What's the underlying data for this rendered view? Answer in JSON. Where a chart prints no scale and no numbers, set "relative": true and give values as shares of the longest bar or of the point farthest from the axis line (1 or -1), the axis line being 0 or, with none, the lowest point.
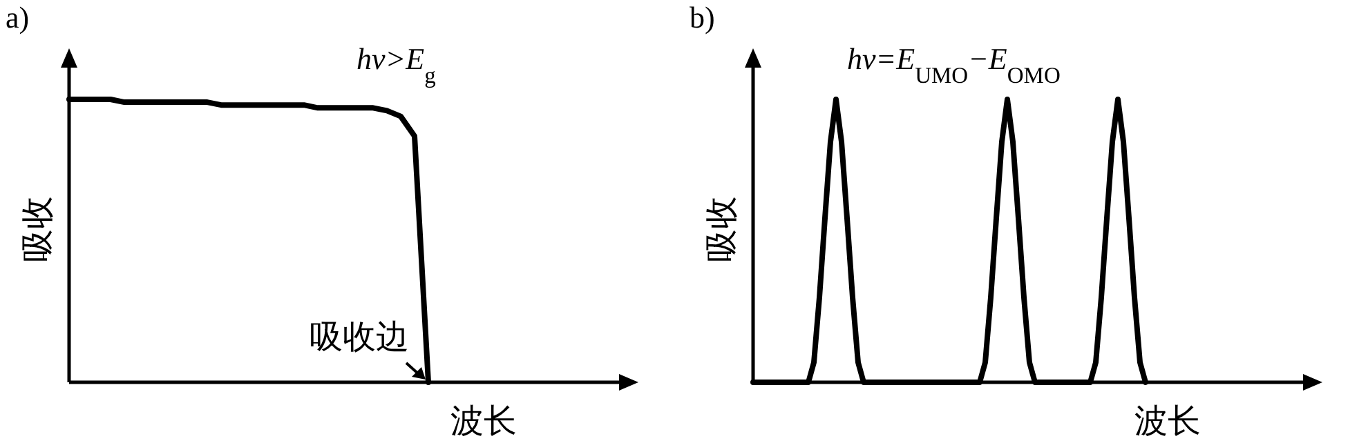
{
  "chart_data": [
    {
      "type": "line",
      "title": "a)",
      "xlabel": "波长",
      "ylabel": "吸收",
      "relative": true,
      "categories": [
        null,
        null,
        null,
        null,
        null,
        null,
        null,
        null,
        null,
        null,
        null,
        null,
        null,
        null,
        null,
        null,
        null,
        null,
        null,
        null,
        null,
        null,
        null,
        null,
        null,
        null,
        null,
        null,
        null,
        null,
        null,
        null,
        null,
        null,
        null,
        null,
        null,
        null,
        null,
        null,
        null
      ],
      "series": [
        {
          "color": "#000000",
          "values": [
            1,
            1,
            1,
            1,
            0.99,
            0.99,
            0.99,
            0.99,
            0.99,
            0.99,
            0.99,
            0.98,
            0.98,
            0.98,
            0.98,
            0.98,
            0.98,
            0.98,
            0.97,
            0.97,
            0.97,
            0.97,
            0.97,
            0.96,
            0.94,
            0.87,
            0,
            null,
            null,
            null,
            null,
            null,
            null,
            null,
            null,
            null,
            null,
            null,
            null,
            null,
            null
          ]
        }
      ],
      "annotations": [
        "hv>E$_{g}$",
        "吸收边"
      ]
    },
    {
      "type": "line",
      "title": "b)",
      "xlabel": "波长",
      "ylabel": "吸收",
      "relative": true,
      "categories": [
        null,
        null,
        null,
        null,
        null,
        null,
        null,
        null,
        null,
        null,
        null,
        null,
        null,
        null,
        null,
        null,
        null,
        null,
        null,
        null,
        null,
        null,
        null,
        null,
        null,
        null,
        null,
        null,
        null,
        null,
        null,
        null,
        null,
        null,
        null,
        null,
        null,
        null,
        null,
        null,
        null,
        null,
        null,
        null,
        null,
        null,
        null,
        null,
        null,
        null,
        null,
        null,
        null,
        null,
        null,
        null,
        null,
        null,
        null,
        null,
        null,
        null,
        null,
        null,
        null,
        null,
        null,
        null,
        null,
        null,
        null,
        null,
        null,
        null,
        null,
        null,
        null,
        null,
        null,
        null,
        null,
        null,
        null,
        null,
        null,
        null,
        null,
        null,
        null,
        null,
        null,
        null,
        null,
        null,
        null,
        null,
        null,
        null,
        null,
        null,
        null
      ],
      "series": [
        {
          "color": "#000000",
          "values": [
            0,
            0,
            0,
            0,
            0,
            0,
            0,
            0,
            0,
            0,
            0,
            0.07,
            0.3,
            0.58,
            0.85,
            1,
            0.85,
            0.58,
            0.3,
            0.07,
            0,
            0,
            0,
            0,
            0,
            0,
            0,
            0,
            0,
            0,
            0,
            0,
            0,
            0,
            0,
            0,
            0,
            0,
            0,
            0,
            0,
            0,
            0.07,
            0.3,
            0.58,
            0.85,
            1,
            0.85,
            0.58,
            0.3,
            0.07,
            0,
            0,
            0,
            0,
            0,
            0,
            0,
            0,
            0,
            0,
            0,
            0.07,
            0.3,
            0.58,
            0.85,
            1,
            0.85,
            0.58,
            0.3,
            0.07,
            0,
            null,
            null,
            null,
            null,
            null,
            null,
            null,
            null,
            null,
            null,
            null,
            null,
            null,
            null,
            null,
            null,
            null,
            null,
            null,
            null,
            null,
            null,
            null,
            null,
            null,
            null,
            null,
            null,
            null
          ]
        }
      ],
      "annotations": [
        "hv=E$_{UMO}$−E$_{OMO}$"
      ]
    }
  ]
}
